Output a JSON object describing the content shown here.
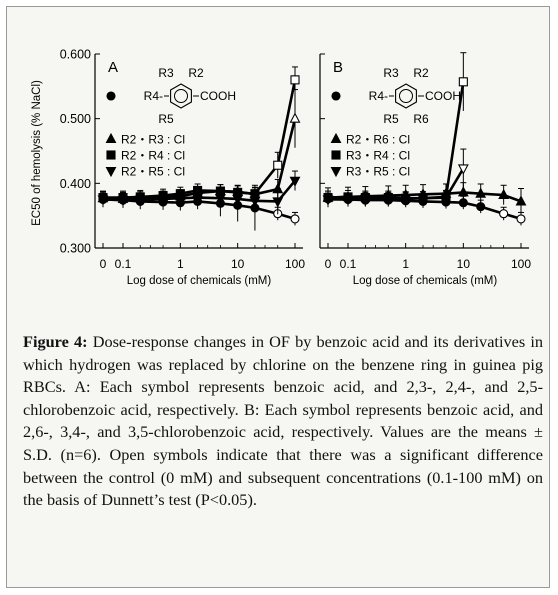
{
  "caption": {
    "label": "Figure 4:",
    "text": " Dose-response changes in OF by benzoic acid and its derivatives in which hydrogen was replaced by chlorine on the benzene ring in guinea pig RBCs. A: Each symbol represents benzoic acid, and 2,3-, 2,4-, and 2,5-chlorobenzoic acid, respectively. B: Each symbol represents benzoic acid, and 2,6-, 3,4-, and 3,5-chlorobenzoic acid, respectively. Values are the means ± S.D. (n=6). Open symbols indicate that there was a significant difference between the control (0 mM) and subsequent concentrations (0.1-100 mM) on the basis of Dunnett’s test (P<0.05)."
  },
  "chart_data": {
    "type": "line",
    "ylabel": "EC50 of hemolysis (% NaCl)",
    "ylim": [
      0.3,
      0.6
    ],
    "yticks": [
      0.3,
      0.4,
      0.5,
      0.6
    ],
    "ytick_labels": [
      "0.300",
      "0.400",
      "0.500",
      "0.600"
    ],
    "xlabel": "Log dose of chemicals (mM)",
    "xscale": "log",
    "xticks": [
      0,
      0.1,
      1,
      10,
      100
    ],
    "xtick_labels": [
      "0",
      "0.1",
      "1",
      "10",
      "100"
    ],
    "x": [
      0,
      0.1,
      0.2,
      0.5,
      1,
      2,
      5,
      10,
      20,
      50,
      100
    ],
    "panels": [
      {
        "label": "A",
        "structure": {
          "top_left": "R3",
          "top_right": "R2",
          "left": "R4-",
          "bottom_left": "R5",
          "bottom_right": "",
          "group": "COOH"
        },
        "legend": [
          {
            "symbol": "circle",
            "text": ""
          },
          {
            "symbol": "triangle-up",
            "text": "R2・R3 : Cl"
          },
          {
            "symbol": "square",
            "text": "R2・R4 : Cl"
          },
          {
            "symbol": "triangle-down",
            "text": "R2・R5 : Cl"
          }
        ],
        "series": [
          {
            "symbol": "circle",
            "x": [
              0,
              0.1,
              0.2,
              0.5,
              1,
              2,
              5,
              10,
              20,
              50,
              100
            ],
            "values": [
              0.375,
              0.374,
              0.372,
              0.371,
              0.37,
              0.372,
              0.369,
              0.366,
              0.362,
              0.353,
              0.345
            ],
            "errors": [
              0.012,
              0.012,
              0.012,
              0.012,
              0.012,
              0.012,
              0.02,
              0.025,
              0.035,
              0.01,
              0.01
            ],
            "open_from": 9
          },
          {
            "symbol": "triangle-up",
            "x": [
              0,
              0.1,
              0.2,
              0.5,
              1,
              2,
              5,
              10,
              20,
              50,
              100
            ],
            "values": [
              0.377,
              0.376,
              0.377,
              0.378,
              0.38,
              0.385,
              0.388,
              0.387,
              0.383,
              0.391,
              0.5
            ],
            "errors": [
              0.01,
              0.01,
              0.01,
              0.01,
              0.01,
              0.01,
              0.01,
              0.01,
              0.01,
              0.015,
              0.045
            ],
            "open_from": 10
          },
          {
            "symbol": "square",
            "x": [
              0,
              0.1,
              0.2,
              0.5,
              1,
              2,
              5,
              10,
              20,
              50,
              100
            ],
            "values": [
              0.378,
              0.378,
              0.379,
              0.381,
              0.384,
              0.389,
              0.388,
              0.386,
              0.384,
              0.428,
              0.56
            ],
            "errors": [
              0.01,
              0.01,
              0.01,
              0.01,
              0.01,
              0.01,
              0.01,
              0.01,
              0.01,
              0.02,
              0.02
            ],
            "open_from": 9
          },
          {
            "symbol": "triangle-down",
            "x": [
              0,
              0.1,
              0.2,
              0.5,
              1,
              2,
              5,
              10,
              20,
              50,
              100
            ],
            "values": [
              0.375,
              0.374,
              0.375,
              0.376,
              0.377,
              0.378,
              0.377,
              0.376,
              0.373,
              0.372,
              0.404
            ],
            "errors": [
              0.01,
              0.01,
              0.01,
              0.01,
              0.01,
              0.01,
              0.01,
              0.01,
              0.01,
              0.02,
              0.015
            ],
            "open_from": 99
          }
        ]
      },
      {
        "label": "B",
        "structure": {
          "top_left": "R3",
          "top_right": "R2",
          "left": "R4-",
          "bottom_left": "R5",
          "bottom_right": "R6",
          "group": "COOH"
        },
        "legend": [
          {
            "symbol": "circle",
            "text": ""
          },
          {
            "symbol": "triangle-up",
            "text": "R2・R6 : Cl"
          },
          {
            "symbol": "square",
            "text": "R3・R4 : Cl"
          },
          {
            "symbol": "triangle-down",
            "text": "R3・R5 : Cl"
          }
        ],
        "series": [
          {
            "symbol": "circle",
            "x": [
              0,
              0.1,
              0.2,
              0.5,
              1,
              2,
              5,
              10,
              20,
              50,
              100
            ],
            "values": [
              0.376,
              0.375,
              0.374,
              0.374,
              0.373,
              0.372,
              0.371,
              0.37,
              0.364,
              0.353,
              0.345
            ],
            "errors": [
              0.012,
              0.01,
              0.01,
              0.01,
              0.01,
              0.01,
              0.01,
              0.01,
              0.01,
              0.01,
              0.01
            ],
            "open_from": 9
          },
          {
            "symbol": "triangle-up",
            "x": [
              0,
              0.1,
              0.2,
              0.5,
              1,
              2,
              5,
              10,
              20,
              50,
              100
            ],
            "values": [
              0.378,
              0.379,
              0.38,
              0.381,
              0.382,
              0.383,
              0.384,
              0.386,
              0.384,
              0.382,
              0.372
            ],
            "errors": [
              0.015,
              0.015,
              0.015,
              0.015,
              0.015,
              0.015,
              0.015,
              0.015,
              0.015,
              0.015,
              0.02
            ],
            "open_from": 99
          },
          {
            "symbol": "square",
            "x": [
              0,
              0.1,
              0.2,
              0.5,
              1,
              2,
              5,
              10
            ],
            "values": [
              0.378,
              0.379,
              0.378,
              0.378,
              0.377,
              0.377,
              0.379,
              0.557
            ],
            "errors": [
              0.01,
              0.01,
              0.01,
              0.01,
              0.01,
              0.01,
              0.01,
              0.045
            ],
            "open_from": 7
          },
          {
            "symbol": "triangle-down",
            "x": [
              0,
              0.1,
              0.2,
              0.5,
              1,
              2,
              5,
              10
            ],
            "values": [
              0.375,
              0.375,
              0.376,
              0.376,
              0.376,
              0.377,
              0.378,
              0.423
            ],
            "errors": [
              0.01,
              0.01,
              0.01,
              0.01,
              0.01,
              0.01,
              0.01,
              0.03
            ],
            "open_from": 7
          }
        ]
      }
    ]
  }
}
